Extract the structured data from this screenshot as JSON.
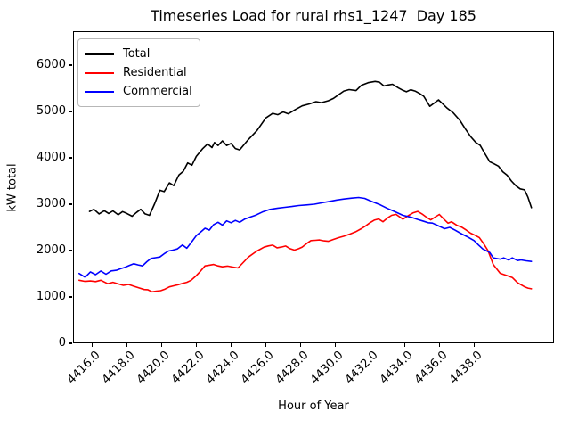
{
  "title": "Timeseries Load for rural rhs1_1247  Day 185",
  "legend": [
    {
      "label": "Total",
      "color": "#000000"
    },
    {
      "label": "Residential",
      "color": "#ff0000"
    },
    {
      "label": "Commercial",
      "color": "#0000ff"
    }
  ],
  "chart_data": {
    "type": "line",
    "title": "Timeseries Load for rural rhs1_1247  Day 185",
    "xlabel": "Hour of Year",
    "ylabel": "kW total",
    "xlim": [
      4414.9,
      4442.6
    ],
    "ylim": [
      0,
      6730
    ],
    "grid": false,
    "legend_position": "upper-left",
    "xticks": [
      {
        "value": 4416,
        "label": "4416.0"
      },
      {
        "value": 4418,
        "label": "4418.0"
      },
      {
        "value": 4420,
        "label": "4420.0"
      },
      {
        "value": 4422,
        "label": "4422.0"
      },
      {
        "value": 4424,
        "label": "4424.0"
      },
      {
        "value": 4426,
        "label": "4426.0"
      },
      {
        "value": 4428,
        "label": "4428.0"
      },
      {
        "value": 4430,
        "label": "4430.0"
      },
      {
        "value": 4432,
        "label": "4432.0"
      },
      {
        "value": 4434,
        "label": "4434.0"
      },
      {
        "value": 4436,
        "label": "4436.0"
      },
      {
        "value": 4438,
        "label": "4438.0"
      },
      {
        "value": 4440,
        "label": ""
      }
    ],
    "yticks": [
      {
        "value": 0,
        "label": "0"
      },
      {
        "value": 1000,
        "label": "1000"
      },
      {
        "value": 2000,
        "label": "2000"
      },
      {
        "value": 3000,
        "label": "3000"
      },
      {
        "value": 4000,
        "label": "4000"
      },
      {
        "value": 5000,
        "label": "5000"
      },
      {
        "value": 6000,
        "label": "6000"
      }
    ],
    "series": [
      {
        "name": "Total",
        "color": "#000000",
        "points": [
          [
            4415.85,
            2843
          ],
          [
            4416.1,
            2890
          ],
          [
            4416.4,
            2790
          ],
          [
            4416.7,
            2860
          ],
          [
            4416.95,
            2800
          ],
          [
            4417.2,
            2855
          ],
          [
            4417.5,
            2770
          ],
          [
            4417.75,
            2840
          ],
          [
            4418.0,
            2800
          ],
          [
            4418.3,
            2740
          ],
          [
            4418.55,
            2820
          ],
          [
            4418.8,
            2890
          ],
          [
            4419.05,
            2790
          ],
          [
            4419.3,
            2760
          ],
          [
            4419.6,
            3010
          ],
          [
            4419.9,
            3300
          ],
          [
            4420.15,
            3270
          ],
          [
            4420.45,
            3460
          ],
          [
            4420.7,
            3400
          ],
          [
            4421.0,
            3630
          ],
          [
            4421.25,
            3710
          ],
          [
            4421.5,
            3890
          ],
          [
            4421.75,
            3840
          ],
          [
            4422.0,
            4030
          ],
          [
            4422.35,
            4190
          ],
          [
            4422.65,
            4300
          ],
          [
            4422.9,
            4220
          ],
          [
            4423.05,
            4330
          ],
          [
            4423.25,
            4265
          ],
          [
            4423.5,
            4365
          ],
          [
            4423.75,
            4265
          ],
          [
            4424.0,
            4310
          ],
          [
            4424.25,
            4200
          ],
          [
            4424.5,
            4170
          ],
          [
            4425.0,
            4395
          ],
          [
            4425.5,
            4590
          ],
          [
            4426.0,
            4860
          ],
          [
            4426.4,
            4960
          ],
          [
            4426.7,
            4930
          ],
          [
            4427.0,
            4990
          ],
          [
            4427.3,
            4950
          ],
          [
            4427.7,
            5040
          ],
          [
            4428.1,
            5120
          ],
          [
            4428.5,
            5160
          ],
          [
            4428.9,
            5210
          ],
          [
            4429.2,
            5190
          ],
          [
            4429.6,
            5230
          ],
          [
            4429.9,
            5280
          ],
          [
            4430.2,
            5360
          ],
          [
            4430.5,
            5440
          ],
          [
            4430.8,
            5470
          ],
          [
            4431.2,
            5450
          ],
          [
            4431.5,
            5560
          ],
          [
            4431.9,
            5620
          ],
          [
            4432.3,
            5648
          ],
          [
            4432.55,
            5630
          ],
          [
            4432.8,
            5550
          ],
          [
            4433.05,
            5570
          ],
          [
            4433.3,
            5585
          ],
          [
            4433.65,
            5505
          ],
          [
            4433.9,
            5455
          ],
          [
            4434.1,
            5425
          ],
          [
            4434.35,
            5467
          ],
          [
            4434.6,
            5440
          ],
          [
            4434.85,
            5390
          ],
          [
            4435.1,
            5327
          ],
          [
            4435.45,
            5110
          ],
          [
            4435.7,
            5180
          ],
          [
            4435.95,
            5250
          ],
          [
            4436.2,
            5160
          ],
          [
            4436.45,
            5070
          ],
          [
            4436.8,
            4970
          ],
          [
            4437.2,
            4800
          ],
          [
            4437.5,
            4620
          ],
          [
            4437.8,
            4460
          ],
          [
            4438.1,
            4330
          ],
          [
            4438.35,
            4270
          ],
          [
            4438.6,
            4105
          ],
          [
            4438.9,
            3915
          ],
          [
            4439.15,
            3870
          ],
          [
            4439.4,
            3820
          ],
          [
            4439.65,
            3700
          ],
          [
            4439.9,
            3625
          ],
          [
            4440.15,
            3500
          ],
          [
            4440.4,
            3400
          ],
          [
            4440.65,
            3330
          ],
          [
            4440.9,
            3310
          ],
          [
            4441.1,
            3150
          ],
          [
            4441.3,
            2925
          ]
        ]
      },
      {
        "name": "Residential",
        "color": "#ff0000",
        "points": [
          [
            4415.25,
            1360
          ],
          [
            4415.6,
            1335
          ],
          [
            4415.9,
            1345
          ],
          [
            4416.2,
            1330
          ],
          [
            4416.5,
            1360
          ],
          [
            4416.9,
            1285
          ],
          [
            4417.2,
            1315
          ],
          [
            4417.5,
            1280
          ],
          [
            4417.8,
            1250
          ],
          [
            4418.1,
            1270
          ],
          [
            4418.4,
            1230
          ],
          [
            4418.7,
            1195
          ],
          [
            4419.0,
            1160
          ],
          [
            4419.2,
            1155
          ],
          [
            4419.45,
            1110
          ],
          [
            4419.7,
            1125
          ],
          [
            4419.95,
            1135
          ],
          [
            4420.2,
            1170
          ],
          [
            4420.45,
            1218
          ],
          [
            4420.7,
            1240
          ],
          [
            4420.95,
            1264
          ],
          [
            4421.2,
            1290
          ],
          [
            4421.45,
            1315
          ],
          [
            4421.7,
            1360
          ],
          [
            4422.0,
            1460
          ],
          [
            4422.25,
            1560
          ],
          [
            4422.5,
            1670
          ],
          [
            4422.75,
            1685
          ],
          [
            4423.0,
            1700
          ],
          [
            4423.25,
            1670
          ],
          [
            4423.5,
            1650
          ],
          [
            4423.8,
            1665
          ],
          [
            4424.1,
            1645
          ],
          [
            4424.4,
            1625
          ],
          [
            4424.7,
            1740
          ],
          [
            4425.0,
            1860
          ],
          [
            4425.45,
            1980
          ],
          [
            4425.9,
            2073
          ],
          [
            4426.15,
            2100
          ],
          [
            4426.4,
            2118
          ],
          [
            4426.65,
            2060
          ],
          [
            4426.9,
            2075
          ],
          [
            4427.15,
            2098
          ],
          [
            4427.4,
            2040
          ],
          [
            4427.65,
            2010
          ],
          [
            4427.9,
            2040
          ],
          [
            4428.1,
            2075
          ],
          [
            4428.35,
            2150
          ],
          [
            4428.6,
            2215
          ],
          [
            4428.85,
            2220
          ],
          [
            4429.1,
            2228
          ],
          [
            4429.35,
            2210
          ],
          [
            4429.6,
            2200
          ],
          [
            4429.9,
            2240
          ],
          [
            4430.2,
            2278
          ],
          [
            4430.5,
            2310
          ],
          [
            4430.85,
            2355
          ],
          [
            4431.2,
            2410
          ],
          [
            4431.5,
            2470
          ],
          [
            4431.75,
            2530
          ],
          [
            4432.0,
            2600
          ],
          [
            4432.25,
            2655
          ],
          [
            4432.5,
            2680
          ],
          [
            4432.75,
            2620
          ],
          [
            4433.0,
            2700
          ],
          [
            4433.25,
            2760
          ],
          [
            4433.5,
            2780
          ],
          [
            4433.9,
            2676
          ],
          [
            4434.2,
            2750
          ],
          [
            4434.5,
            2815
          ],
          [
            4434.75,
            2843
          ],
          [
            4435.0,
            2790
          ],
          [
            4435.25,
            2720
          ],
          [
            4435.5,
            2662
          ],
          [
            4435.75,
            2720
          ],
          [
            4436.0,
            2778
          ],
          [
            4436.25,
            2680
          ],
          [
            4436.5,
            2590
          ],
          [
            4436.7,
            2620
          ],
          [
            4437.0,
            2545
          ],
          [
            4437.3,
            2502
          ],
          [
            4437.55,
            2440
          ],
          [
            4437.8,
            2375
          ],
          [
            4438.05,
            2330
          ],
          [
            4438.3,
            2280
          ],
          [
            4438.55,
            2150
          ],
          [
            4438.8,
            2000
          ],
          [
            4439.1,
            1700
          ],
          [
            4439.5,
            1510
          ],
          [
            4439.9,
            1460
          ],
          [
            4440.2,
            1420
          ],
          [
            4440.5,
            1305
          ],
          [
            4440.9,
            1220
          ],
          [
            4441.1,
            1190
          ],
          [
            4441.3,
            1175
          ]
        ]
      },
      {
        "name": "Commercial",
        "color": "#0000ff",
        "points": [
          [
            4415.25,
            1505
          ],
          [
            4415.6,
            1425
          ],
          [
            4415.9,
            1540
          ],
          [
            4416.2,
            1480
          ],
          [
            4416.5,
            1560
          ],
          [
            4416.8,
            1490
          ],
          [
            4417.1,
            1562
          ],
          [
            4417.4,
            1575
          ],
          [
            4417.65,
            1610
          ],
          [
            4417.9,
            1640
          ],
          [
            4418.15,
            1680
          ],
          [
            4418.4,
            1715
          ],
          [
            4418.65,
            1690
          ],
          [
            4418.9,
            1670
          ],
          [
            4419.15,
            1760
          ],
          [
            4419.4,
            1830
          ],
          [
            4419.65,
            1845
          ],
          [
            4419.9,
            1862
          ],
          [
            4420.15,
            1930
          ],
          [
            4420.4,
            1990
          ],
          [
            4420.65,
            2010
          ],
          [
            4420.9,
            2035
          ],
          [
            4421.2,
            2120
          ],
          [
            4421.45,
            2050
          ],
          [
            4421.7,
            2170
          ],
          [
            4422.0,
            2320
          ],
          [
            4422.25,
            2400
          ],
          [
            4422.5,
            2480
          ],
          [
            4422.75,
            2440
          ],
          [
            4423.0,
            2560
          ],
          [
            4423.25,
            2610
          ],
          [
            4423.5,
            2550
          ],
          [
            4423.75,
            2640
          ],
          [
            4424.0,
            2600
          ],
          [
            4424.25,
            2650
          ],
          [
            4424.5,
            2610
          ],
          [
            4424.8,
            2680
          ],
          [
            4425.1,
            2720
          ],
          [
            4425.4,
            2760
          ],
          [
            4425.8,
            2830
          ],
          [
            4426.25,
            2888
          ],
          [
            4426.7,
            2915
          ],
          [
            4427.1,
            2932
          ],
          [
            4427.5,
            2950
          ],
          [
            4427.9,
            2970
          ],
          [
            4428.35,
            2985
          ],
          [
            4428.8,
            3000
          ],
          [
            4429.25,
            3030
          ],
          [
            4429.7,
            3062
          ],
          [
            4430.1,
            3090
          ],
          [
            4430.5,
            3112
          ],
          [
            4430.95,
            3130
          ],
          [
            4431.35,
            3143
          ],
          [
            4431.7,
            3124
          ],
          [
            4432.1,
            3060
          ],
          [
            4432.6,
            2985
          ],
          [
            4433.0,
            2910
          ],
          [
            4433.4,
            2845
          ],
          [
            4433.9,
            2760
          ],
          [
            4434.4,
            2715
          ],
          [
            4434.75,
            2670
          ],
          [
            4435.1,
            2630
          ],
          [
            4435.35,
            2600
          ],
          [
            4435.6,
            2592
          ],
          [
            4435.9,
            2540
          ],
          [
            4436.3,
            2470
          ],
          [
            4436.6,
            2500
          ],
          [
            4436.9,
            2440
          ],
          [
            4437.3,
            2355
          ],
          [
            4437.65,
            2290
          ],
          [
            4438.0,
            2215
          ],
          [
            4438.25,
            2120
          ],
          [
            4438.5,
            2035
          ],
          [
            4438.7,
            1995
          ],
          [
            4438.9,
            1958
          ],
          [
            4439.1,
            1843
          ],
          [
            4439.5,
            1815
          ],
          [
            4439.7,
            1843
          ],
          [
            4440.0,
            1796
          ],
          [
            4440.2,
            1843
          ],
          [
            4440.5,
            1785
          ],
          [
            4440.7,
            1797
          ],
          [
            4441.0,
            1778
          ],
          [
            4441.3,
            1765
          ]
        ]
      }
    ]
  }
}
